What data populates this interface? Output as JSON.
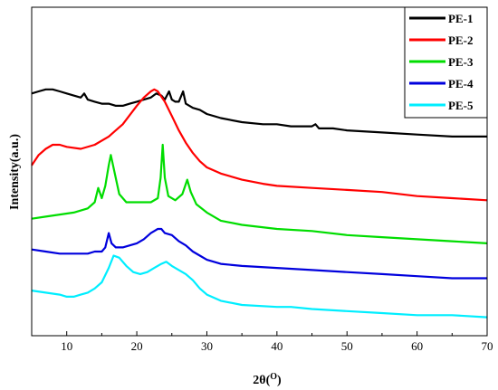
{
  "chart_data": {
    "type": "line",
    "title": "",
    "xlabel": "2θ(",
    "xlabel_sup": "O",
    "xlabel_close": ")",
    "ylabel": "Intensity(a.u.)",
    "xlim": [
      5,
      70
    ],
    "xticks": [
      10,
      20,
      30,
      40,
      50,
      60,
      70
    ],
    "yticks_labels": "none",
    "grid": false,
    "legend_position": "top-right",
    "series": [
      {
        "name": "PE-1",
        "color": "#000000",
        "x": [
          5,
          6,
          7,
          8,
          9,
          10,
          11,
          12,
          12.5,
          13,
          14,
          15,
          16,
          17,
          18,
          19,
          20,
          21,
          22,
          22.8,
          23.5,
          24,
          24.6,
          25,
          25.5,
          26,
          26.6,
          27,
          28,
          29,
          30,
          32,
          35,
          38,
          40,
          42,
          45,
          45.5,
          46,
          48,
          50,
          55,
          60,
          65,
          70
        ],
        "y": [
          93,
          94,
          95,
          95,
          94,
          93,
          92,
          91,
          93,
          90,
          89,
          88,
          88,
          87,
          87,
          88,
          89,
          90,
          91,
          93,
          92,
          90,
          94,
          90,
          89,
          89,
          94,
          88,
          86,
          85,
          83,
          81,
          79,
          78,
          78,
          77,
          77,
          78,
          76,
          76,
          75,
          74,
          73,
          72,
          72
        ]
      },
      {
        "name": "PE-2",
        "color": "#ff0000",
        "x": [
          5,
          6,
          7,
          8,
          9,
          10,
          12,
          14,
          16,
          18,
          20,
          21,
          22,
          22.5,
          23,
          24,
          25,
          26,
          27,
          28,
          29,
          30,
          32,
          35,
          38,
          40,
          45,
          50,
          55,
          60,
          65,
          70
        ],
        "y": [
          58,
          63,
          66,
          68,
          68,
          67,
          66,
          68,
          72,
          78,
          87,
          91,
          94,
          95,
          94,
          89,
          82,
          75,
          69,
          64,
          60,
          57,
          54,
          51,
          49,
          48,
          47,
          46,
          45,
          43,
          42,
          41
        ]
      },
      {
        "name": "PE-3",
        "color": "#00dd00",
        "x": [
          5,
          7,
          9,
          11,
          13,
          14,
          14.5,
          15,
          15.5,
          16,
          16.3,
          16.8,
          17.5,
          18.5,
          20,
          22,
          23,
          23.4,
          23.7,
          24,
          24.5,
          25.5,
          26.5,
          27.2,
          27.7,
          28.5,
          30,
          32,
          35,
          40,
          45,
          50,
          55,
          60,
          65,
          70
        ],
        "y": [
          32,
          33,
          34,
          35,
          37,
          40,
          47,
          42,
          48,
          58,
          63,
          55,
          44,
          40,
          40,
          40,
          42,
          52,
          68,
          52,
          43,
          41,
          44,
          51,
          45,
          39,
          35,
          31,
          29,
          27,
          26,
          24,
          23,
          22,
          21,
          20
        ]
      },
      {
        "name": "PE-4",
        "color": "#0000dd",
        "x": [
          5,
          7,
          9,
          11,
          13,
          14,
          15,
          15.5,
          16,
          16.4,
          17,
          18,
          19,
          20,
          21,
          22,
          23,
          23.5,
          24,
          25,
          26,
          27,
          28,
          29,
          30,
          32,
          35,
          40,
          45,
          50,
          55,
          60,
          65,
          70
        ],
        "y": [
          17,
          16,
          15,
          15,
          15,
          16,
          16,
          18,
          25,
          20,
          18,
          18,
          19,
          20,
          22,
          25,
          27,
          27,
          25,
          24,
          21,
          19,
          16,
          14,
          12,
          10,
          9,
          8,
          7,
          6,
          5,
          4,
          3,
          3
        ]
      },
      {
        "name": "PE-5",
        "color": "#00eeff",
        "x": [
          5,
          7,
          9,
          10,
          11,
          12,
          13,
          14,
          15,
          16,
          16.7,
          17.5,
          18.5,
          19.5,
          20.5,
          21.5,
          22.5,
          23.5,
          24.2,
          25,
          26,
          27,
          28,
          29,
          30,
          32,
          35,
          40,
          42,
          45,
          50,
          55,
          60,
          65,
          70
        ],
        "y": [
          -3,
          -4,
          -5,
          -6,
          -6,
          -5,
          -4,
          -2,
          1,
          8,
          14,
          13,
          9,
          6,
          5,
          6,
          8,
          10,
          11,
          9,
          7,
          5,
          2,
          -2,
          -5,
          -8,
          -10,
          -11,
          -11,
          -12,
          -13,
          -14,
          -15,
          -15,
          -16
        ]
      }
    ]
  }
}
